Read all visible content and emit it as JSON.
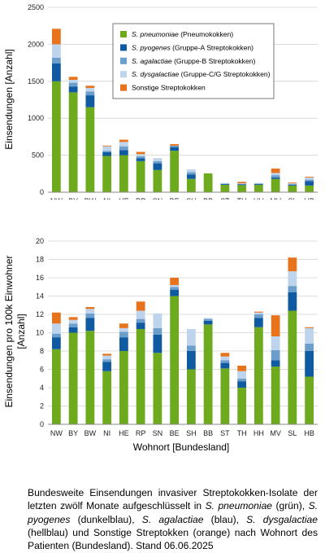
{
  "chart_data": [
    {
      "type": "bar",
      "stacked": true,
      "ylabel": "Einsendungen [Anzahl]",
      "xlabel": "",
      "ylim": [
        0,
        2500
      ],
      "yticks": [
        0,
        500,
        1000,
        1500,
        2000,
        2500
      ],
      "grid": true,
      "legend_position": "top-right",
      "categories": [
        "NW",
        "BY",
        "BW",
        "NI",
        "HE",
        "RP",
        "SN",
        "BE",
        "SH",
        "BB",
        "ST",
        "TH",
        "HH",
        "MV",
        "SL",
        "HB"
      ],
      "series": [
        {
          "name": "S. pneumoniae (Pneumokokken)",
          "color": "#6eaa1e",
          "values": [
            1500,
            1350,
            1150,
            490,
            500,
            420,
            300,
            560,
            180,
            255,
            100,
            95,
            100,
            180,
            90,
            90
          ]
        },
        {
          "name": "S. pyogenes (Gruppe-A Streptokokken)",
          "color": "#0f5aa0",
          "values": [
            240,
            80,
            160,
            50,
            70,
            40,
            90,
            50,
            60,
            0,
            10,
            10,
            10,
            20,
            10,
            60
          ]
        },
        {
          "name": "S. agalactiae (Gruppe-B Streptokokken)",
          "color": "#6c9ecb",
          "values": [
            80,
            50,
            50,
            20,
            50,
            25,
            30,
            20,
            30,
            0,
            5,
            5,
            5,
            30,
            10,
            20
          ]
        },
        {
          "name": "S. dysgalactiae (Gruppe-C/G Streptokokken)",
          "color": "#bdd4ec",
          "values": [
            180,
            40,
            50,
            60,
            60,
            30,
            40,
            0,
            40,
            0,
            10,
            10,
            10,
            30,
            10,
            30
          ]
        },
        {
          "name": "Sonstige Streptokokken",
          "color": "#e8731d",
          "values": [
            210,
            40,
            30,
            10,
            30,
            30,
            0,
            20,
            0,
            0,
            0,
            20,
            0,
            60,
            10,
            10
          ]
        }
      ]
    },
    {
      "type": "bar",
      "stacked": true,
      "ylabel": "Einsendungen pro 100k Einwohner [Anzahl]",
      "xlabel": "Wohnort [Bundesland]",
      "ylim": [
        0,
        20
      ],
      "yticks": [
        0,
        2,
        4,
        6,
        8,
        10,
        12,
        14,
        16,
        18,
        20
      ],
      "grid": true,
      "categories": [
        "NW",
        "BY",
        "BW",
        "NI",
        "HE",
        "RP",
        "SN",
        "BE",
        "SH",
        "BB",
        "ST",
        "TH",
        "HH",
        "MV",
        "SL",
        "HB"
      ],
      "series": [
        {
          "name": "S. pneumoniae (Pneumokokken)",
          "color": "#6eaa1e",
          "values": [
            8.2,
            10.0,
            10.2,
            5.8,
            8.0,
            10.4,
            7.8,
            14.0,
            6.0,
            10.9,
            6.1,
            4.0,
            10.6,
            6.3,
            12.4,
            5.2
          ]
        },
        {
          "name": "S. pyogenes (Gruppe-A Streptokokken)",
          "color": "#0f5aa0",
          "values": [
            1.3,
            0.6,
            1.4,
            1.0,
            1.5,
            0.7,
            2.0,
            0.7,
            2.0,
            0.4,
            0.6,
            0.7,
            1.0,
            0.7,
            2.0,
            2.8
          ]
        },
        {
          "name": "S. agalactiae (Gruppe-B Streptokokken)",
          "color": "#6c9ecb",
          "values": [
            0.4,
            0.4,
            0.5,
            0.3,
            0.6,
            0.4,
            0.7,
            0.3,
            0.6,
            0.2,
            0.3,
            0.3,
            0.4,
            1.1,
            0.7,
            0.8
          ]
        },
        {
          "name": "S. dysgalactiae (Gruppe-C/G Streptokokken)",
          "color": "#bdd4ec",
          "values": [
            1.1,
            0.4,
            0.5,
            0.4,
            0.4,
            0.9,
            1.6,
            0.2,
            1.8,
            0.1,
            0.4,
            0.8,
            0.2,
            1.5,
            1.6,
            1.7
          ]
        },
        {
          "name": "Sonstige Streptokokken",
          "color": "#e8731d",
          "values": [
            1.2,
            0.3,
            0.2,
            0.2,
            0.5,
            1.0,
            0.0,
            0.8,
            0.0,
            0.0,
            0.4,
            0.6,
            0.1,
            2.3,
            1.5,
            0.1
          ]
        }
      ]
    }
  ],
  "legend": [
    {
      "italic": "S. pneumoniae",
      "rest": " (Pneumokokken)",
      "color": "#6eaa1e"
    },
    {
      "italic": "S. pyogenes",
      "rest": " (Gruppe-A Streptokokken)",
      "color": "#0f5aa0"
    },
    {
      "italic": "S. agalactiae",
      "rest": " (Gruppe-B Streptokokken)",
      "color": "#6c9ecb"
    },
    {
      "italic": "S. dysgalactiae",
      "rest": " (Gruppe-C/G Streptokokken)",
      "color": "#bdd4ec"
    },
    {
      "italic": "",
      "rest": "Sonstige Streptokokken",
      "color": "#e8731d"
    }
  ],
  "caption": {
    "t1": "Bundesweite Einsendungen invasiver Streptokokken-Isolate der letzten zwölf Monate aufgeschlüsselt in ",
    "i1": "S. pneumoniae",
    "t2": " (grün), ",
    "i2": "S. pyogenes",
    "t3": " (dunkelblau), ",
    "i3": "S. agalactiae",
    "t4": " (blau), ",
    "i4": "S. dysgalactiae",
    "t5": " (hellblau) und Sonstige Streptokken (orange) nach Wohnort des Patienten (Bundesland). Stand 06.06.2025"
  }
}
